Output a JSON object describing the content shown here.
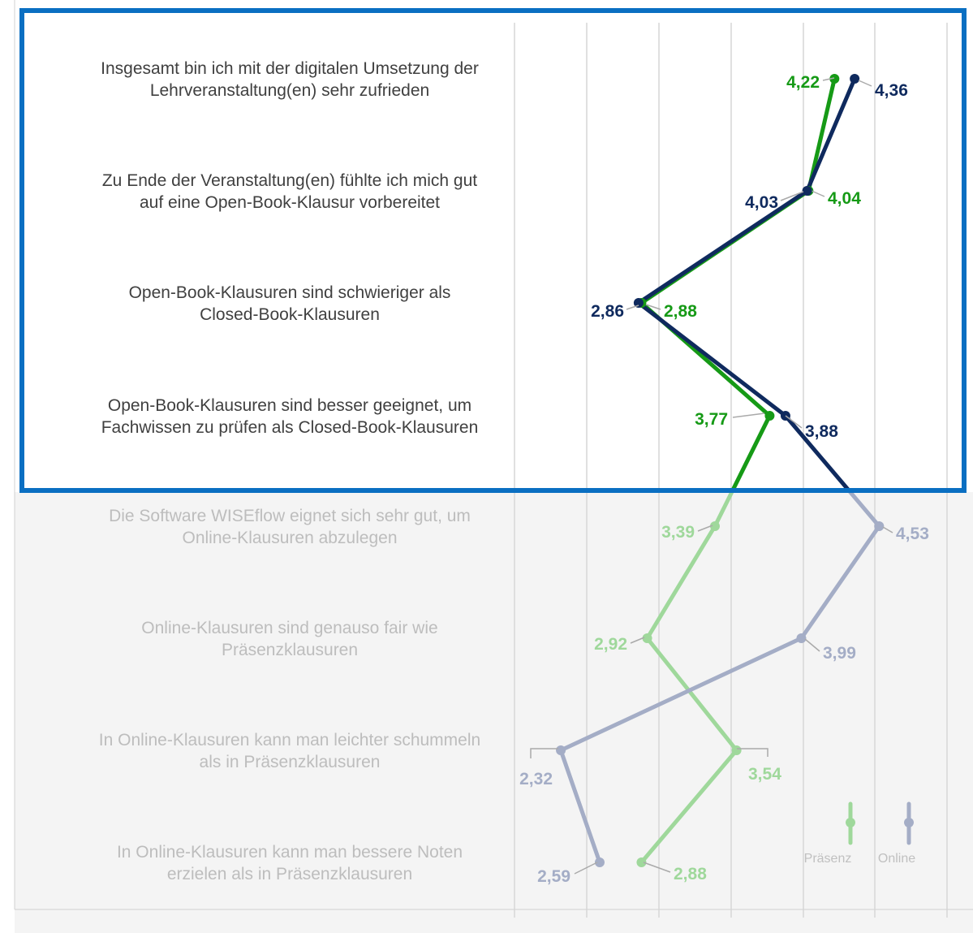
{
  "chart_data": {
    "type": "line",
    "orientation": "horizontal-values",
    "categories": [
      [
        "Insgesamt bin ich mit der digitalen Umsetzung der",
        "Lehrveranstaltung(en) sehr zufrieden"
      ],
      [
        "Zu Ende der Veranstaltung(en) fühlte ich mich gut",
        "auf eine Open-Book-Klausur vorbereitet"
      ],
      [
        "Open-Book-Klausuren sind schwieriger als",
        "Closed-Book-Klausuren"
      ],
      [
        "Open-Book-Klausuren sind besser geeignet, um",
        "Fachwissen zu prüfen als Closed-Book-Klausuren"
      ],
      [
        "Die Software WISEflow eignet sich sehr gut, um",
        "Online-Klausuren abzulegen"
      ],
      [
        "Online-Klausuren sind genauso fair wie",
        "Präsenzklausuren"
      ],
      [
        "In Online-Klausuren kann man leichter schummeln",
        "als in Präsenzklausuren"
      ],
      [
        "In Online-Klausuren kann man bessere Noten",
        "erzielen als in Präsenzklausuren"
      ]
    ],
    "series": [
      {
        "name": "Präsenz",
        "color": "#169a16",
        "faded_color": "#9fd89b",
        "values": [
          4.22,
          4.04,
          2.88,
          3.77,
          3.39,
          2.92,
          3.54,
          2.88
        ],
        "labels": [
          "4,22",
          "4,04",
          "2,88",
          "3,77",
          "3,39",
          "2,92",
          "3,54",
          "2,88"
        ]
      },
      {
        "name": "Online",
        "color": "#0f2a5e",
        "faded_color": "#a4adc6",
        "values": [
          4.36,
          4.03,
          2.86,
          3.88,
          4.53,
          3.99,
          2.32,
          2.59
        ],
        "labels": [
          "4,36",
          "4,03",
          "2,86",
          "3,88",
          "4,53",
          "3,99",
          "2,32",
          "2,59"
        ]
      }
    ],
    "highlighted_rows": 4,
    "grid": true,
    "legend_position": "bottom-right",
    "highlight_color": "#0a6fc2",
    "text_color": "#404040",
    "faded_text_color": "#bdbdbd"
  }
}
